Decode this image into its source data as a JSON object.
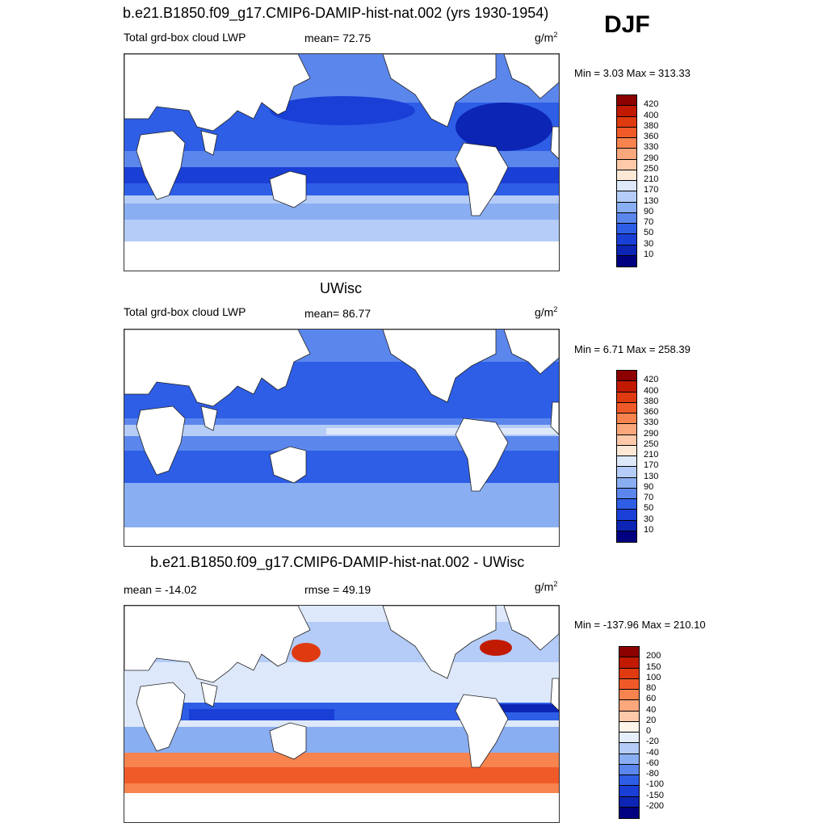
{
  "season": "DJF",
  "panels": [
    {
      "title": "b.e21.B1850.f09_g17.CMIP6-DAMIP-hist-nat.002 (yrs 1930-1954)",
      "left_label": "Total grd-box cloud LWP",
      "center_label": "mean=  72.75",
      "units_base": "g/m",
      "units_exp": "2",
      "minmax": "Min =   3.03 Max = 313.33",
      "colorbar": {
        "labels": [
          "420",
          "400",
          "380",
          "360",
          "330",
          "290",
          "250",
          "210",
          "170",
          "130",
          "90",
          "70",
          "50",
          "30",
          "10"
        ],
        "colors": [
          "#8c0000",
          "#c21a00",
          "#e03a10",
          "#f05a28",
          "#f7834f",
          "#fba77c",
          "#fdc9a9",
          "#fde8d6",
          "#dde8fb",
          "#b4ccf7",
          "#8aaef2",
          "#5b86ec",
          "#2e5ee6",
          "#1a3fd6",
          "#0c25b4",
          "#000080"
        ]
      }
    },
    {
      "title": "UWisc",
      "left_label": "Total grd-box cloud LWP",
      "center_label": "mean=  86.77",
      "units_base": "g/m",
      "units_exp": "2",
      "minmax": "Min =   6.71 Max = 258.39",
      "colorbar": {
        "labels": [
          "420",
          "400",
          "380",
          "360",
          "330",
          "290",
          "250",
          "210",
          "170",
          "130",
          "90",
          "70",
          "50",
          "30",
          "10"
        ],
        "colors": [
          "#8c0000",
          "#c21a00",
          "#e03a10",
          "#f05a28",
          "#f7834f",
          "#fba77c",
          "#fdc9a9",
          "#fde8d6",
          "#dde8fb",
          "#b4ccf7",
          "#8aaef2",
          "#5b86ec",
          "#2e5ee6",
          "#1a3fd6",
          "#0c25b4",
          "#000080"
        ]
      }
    },
    {
      "title": "b.e21.B1850.f09_g17.CMIP6-DAMIP-hist-nat.002 - UWisc",
      "left_label": "mean = -14.02",
      "center_label": "rmse =  49.19",
      "units_base": "g/m",
      "units_exp": "2",
      "minmax": "Min = -137.96 Max = 210.10",
      "colorbar": {
        "labels": [
          "200",
          "150",
          "100",
          "80",
          "60",
          "40",
          "20",
          "0",
          "-20",
          "-40",
          "-60",
          "-80",
          "-100",
          "-150",
          "-200"
        ],
        "colors": [
          "#8c0000",
          "#c21a00",
          "#e03a10",
          "#f05a28",
          "#f7834f",
          "#fba77c",
          "#fdc9a9",
          "#fff4ea",
          "#e6eefc",
          "#b4ccf7",
          "#8aaef2",
          "#5b86ec",
          "#2e5ee6",
          "#1a3fd6",
          "#0c25b4",
          "#000080"
        ]
      }
    }
  ]
}
